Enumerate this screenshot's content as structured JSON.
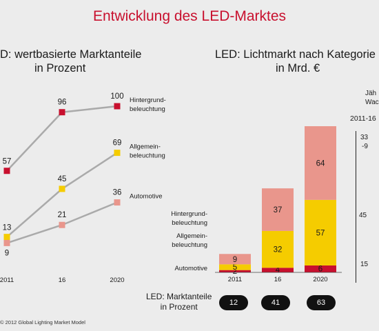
{
  "title": "Entwicklung des LED-Marktes",
  "source": "© 2012 Global Lighting Market Model",
  "colors": {
    "red": "#c8102e",
    "yellow": "#f5cc00",
    "salmon": "#e9968c",
    "line": "#aaaaaa"
  },
  "chart_data": [
    {
      "type": "line",
      "title": "D: wertbasierte Marktanteile in Prozent",
      "title_lines": [
        "D: wertbasierte Marktanteile",
        "in Prozent"
      ],
      "categories": [
        "2011",
        "16",
        "2020"
      ],
      "series": [
        {
          "name": "Hintergrund-beleuchtung",
          "name_lines": [
            "Hintergrund-",
            "beleuchtung"
          ],
          "color": "#c8102e",
          "values": [
            57,
            96,
            100
          ]
        },
        {
          "name": "Allgemein-beleuchtung",
          "name_lines": [
            "Allgemein-",
            "beleuchtung"
          ],
          "color": "#f5cc00",
          "values": [
            13,
            45,
            69
          ]
        },
        {
          "name": "Automotive",
          "name_lines": [
            "Automotive"
          ],
          "color": "#e9968c",
          "values": [
            9,
            21,
            36
          ]
        }
      ]
    },
    {
      "type": "bar",
      "stacked": true,
      "title": "LED: Lichtmarkt nach Kategorien in Mrd. €",
      "title_lines": [
        "LED: Lichtmarkt nach Kategorie",
        "in Mrd. €"
      ],
      "categories": [
        "2011",
        "16",
        "2020"
      ],
      "series": [
        {
          "name": "Automotive",
          "color": "#c8102e",
          "values": [
            2,
            4,
            6
          ]
        },
        {
          "name": "Allgemein-beleuchtung",
          "color": "#f5cc00",
          "values": [
            5,
            32,
            57
          ]
        },
        {
          "name": "Hintergrund-beleuchtung",
          "color": "#e9968c",
          "values": [
            9,
            37,
            64
          ]
        }
      ],
      "legend_lines": [
        [
          "Hintergrund-",
          "beleuchtung"
        ],
        [
          "Allgemein-",
          "beleuchtung"
        ],
        [
          "Automotive"
        ]
      ],
      "marktanteile_label_lines": [
        "LED: Marktanteile",
        "in Prozent"
      ],
      "marktanteile": [
        12,
        41,
        63
      ]
    }
  ],
  "growth_header_lines": [
    "Jäh",
    "Wachs"
  ],
  "growth_period": "2011-16",
  "growth_values": [
    "33",
    "-9",
    "45",
    "15"
  ]
}
